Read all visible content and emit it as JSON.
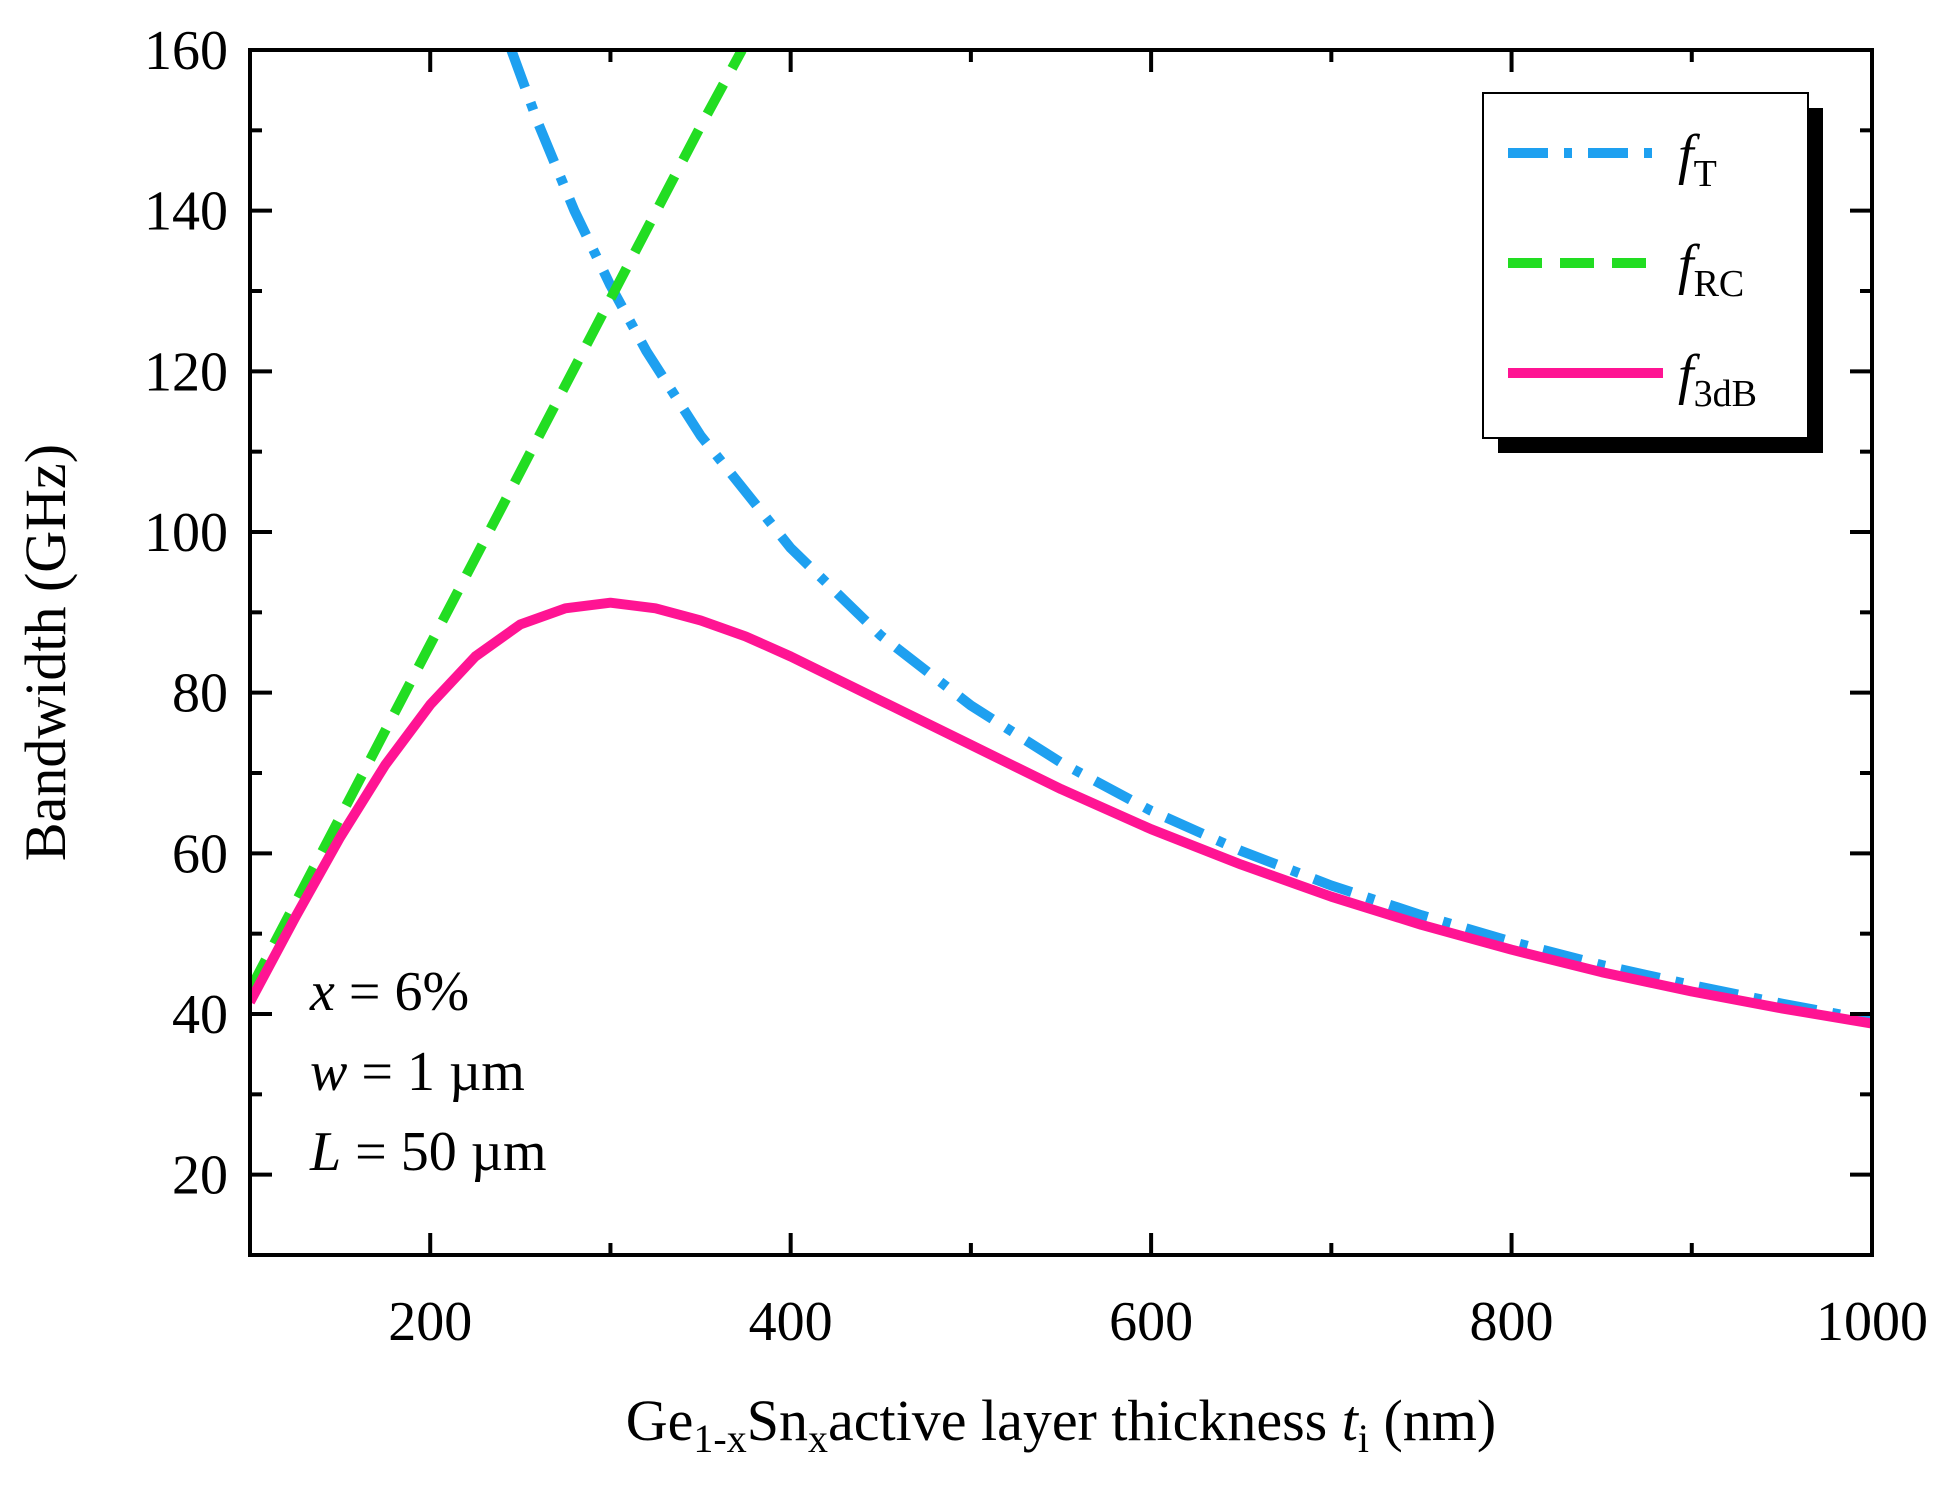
{
  "chart_data": {
    "type": "line",
    "title": "",
    "xlabel": {
      "parts": [
        {
          "text": "Ge",
          "style": "normal"
        },
        {
          "text": "1-x",
          "style": "sub"
        },
        {
          "text": "Sn",
          "style": "normal"
        },
        {
          "text": "x",
          "style": "sub"
        },
        {
          "text": "active layer thickness ",
          "style": "normal"
        },
        {
          "text": "t",
          "style": "italic"
        },
        {
          "text": "i",
          "style": "sub"
        },
        {
          "text": " (nm)",
          "style": "normal"
        }
      ]
    },
    "ylabel": "Bandwidth (GHz)",
    "xlim": [
      100,
      1000
    ],
    "ylim": [
      10,
      160
    ],
    "xticks": [
      200,
      400,
      600,
      800,
      1000
    ],
    "yticks": [
      20,
      40,
      60,
      80,
      100,
      120,
      140,
      160
    ],
    "legend_position": "top-right",
    "series": [
      {
        "name": "f_T",
        "legend_main": "f",
        "legend_sub": "T",
        "color": "#1ea0f0",
        "dash": "dashdot",
        "x": [
          245,
          260,
          280,
          300,
          320,
          350,
          400,
          450,
          500,
          550,
          600,
          650,
          700,
          750,
          800,
          850,
          900,
          950,
          1000
        ],
        "y": [
          160,
          150.8,
          140.0,
          130.7,
          122.5,
          112.0,
          98.0,
          87.1,
          78.4,
          71.3,
          65.3,
          60.3,
          56.0,
          52.3,
          49.0,
          46.1,
          43.6,
          41.3,
          39.2
        ]
      },
      {
        "name": "f_RC",
        "legend_main": "f",
        "legend_sub": "RC",
        "color": "#22dd22",
        "dash": "dashed",
        "x": [
          100,
          150,
          200,
          250,
          300,
          350,
          373
        ],
        "y": [
          43,
          64.5,
          86.0,
          107.5,
          129.0,
          150.5,
          160
        ]
      },
      {
        "name": "f_3dB",
        "legend_main": "f",
        "legend_sub": "3dB",
        "color": "#ff1493",
        "dash": "solid",
        "x": [
          100,
          125,
          150,
          175,
          200,
          225,
          250,
          275,
          300,
          325,
          350,
          375,
          400,
          450,
          500,
          550,
          600,
          650,
          700,
          750,
          800,
          850,
          900,
          950,
          1000
        ],
        "y": [
          41.5,
          52.0,
          62.0,
          71.0,
          78.5,
          84.5,
          88.5,
          90.5,
          91.2,
          90.5,
          89.0,
          87.0,
          84.5,
          79.0,
          73.5,
          68.0,
          63.0,
          58.6,
          54.6,
          51.1,
          48.0,
          45.2,
          42.8,
          40.7,
          38.8
        ]
      }
    ],
    "annotations": [
      {
        "var": "x",
        "rest": " = 6%"
      },
      {
        "var": "w",
        "rest": " = 1 µm"
      },
      {
        "var": "L",
        "rest": " = 50 µm"
      }
    ]
  }
}
